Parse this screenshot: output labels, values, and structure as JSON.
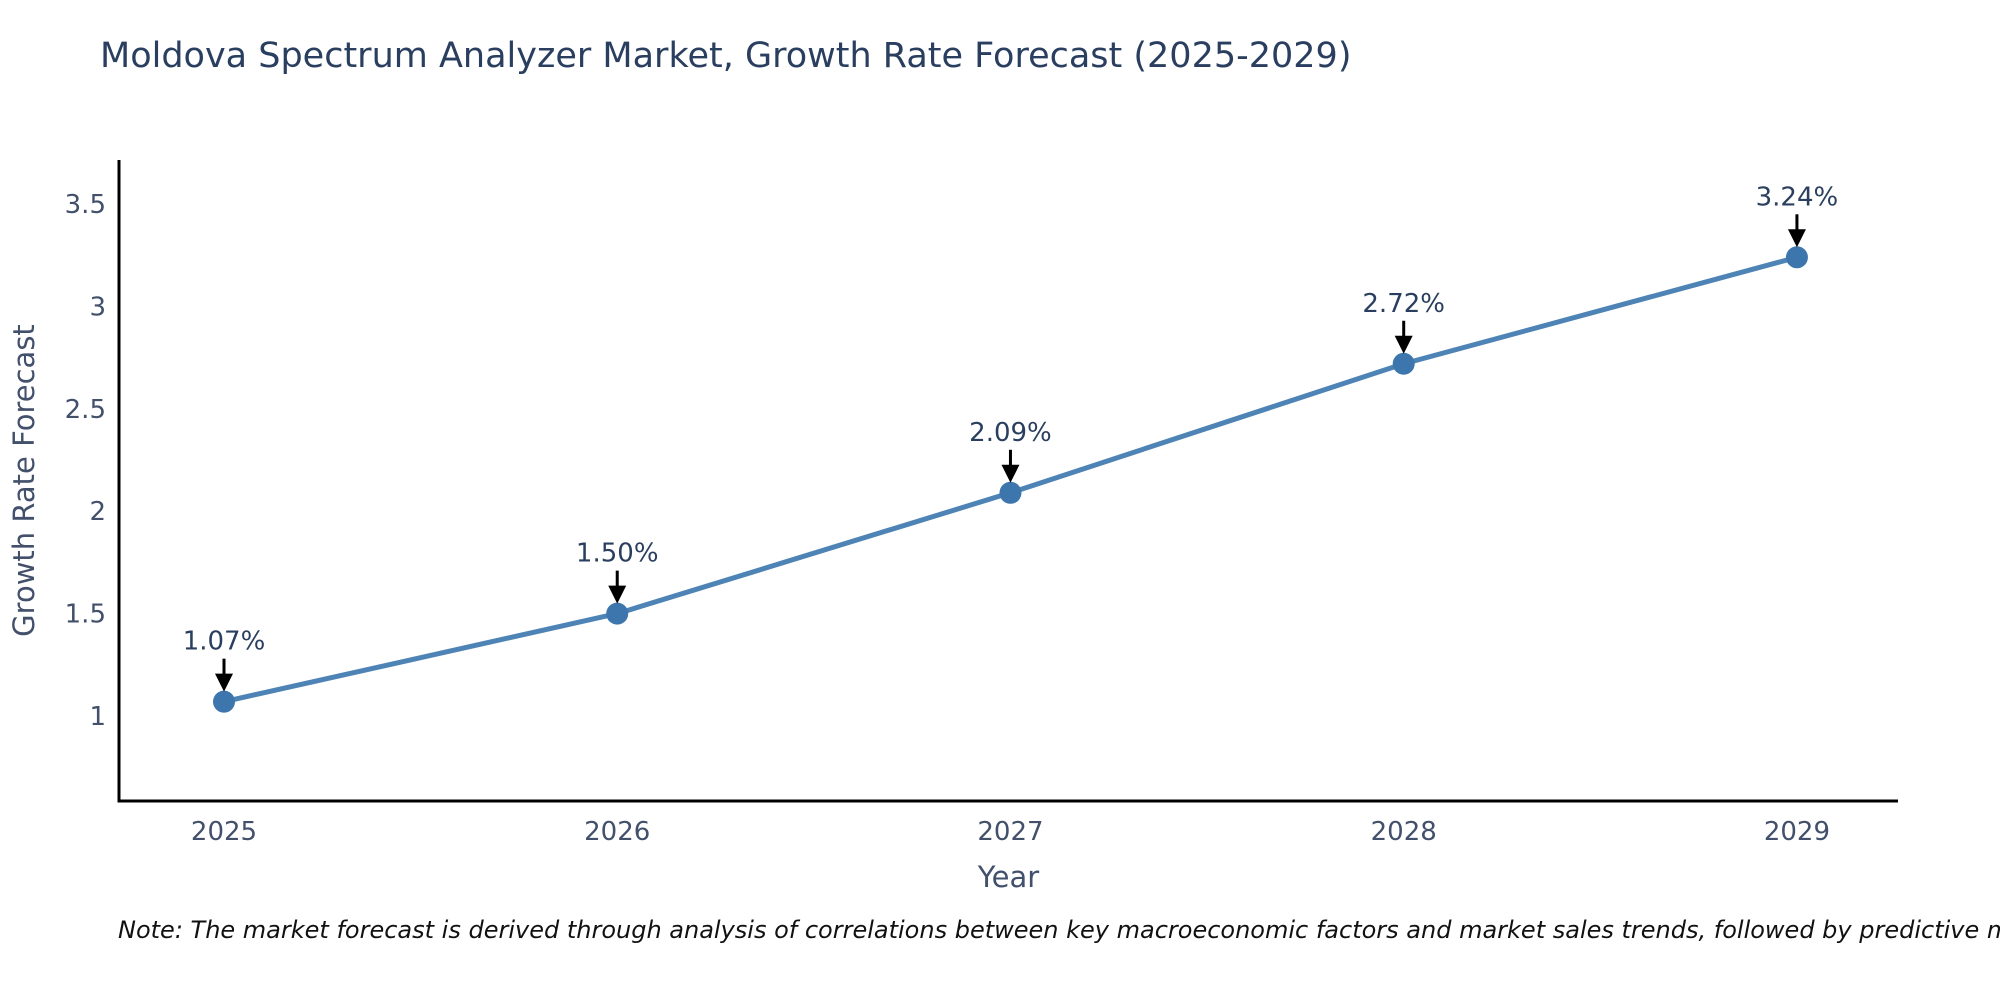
{
  "note": "Note: The market forecast is derived through analysis of correlations between key macroeconomic factors and market sales trends, followed by predictive modeling to project future sales",
  "chart_data": {
    "type": "line",
    "title": "Moldova Spectrum Analyzer Market, Growth Rate Forecast (2025-2029)",
    "xlabel": "Year",
    "ylabel": "Growth Rate Forecast",
    "x": [
      2025,
      2026,
      2027,
      2028,
      2029
    ],
    "values": [
      1.07,
      1.5,
      2.09,
      2.72,
      3.24
    ],
    "point_labels": [
      "1.07%",
      "1.50%",
      "2.09%",
      "2.72%",
      "3.24%"
    ],
    "x_tick_labels": [
      "2025",
      "2026",
      "2027",
      "2028",
      "2029"
    ],
    "y_ticks": [
      1,
      1.5,
      2,
      2.5,
      3,
      3.5
    ],
    "y_tick_labels": [
      "1",
      "1.5",
      "2",
      "2.5",
      "3",
      "3.5"
    ],
    "xlim": [
      2024.733,
      2029.257
    ],
    "ylim": [
      0.585,
      3.715
    ],
    "grid": false,
    "legend": "none",
    "marker": "circle",
    "annotation_style": "label-above-with-down-arrow",
    "colors": {
      "line": "#4e84b5",
      "marker": "#3c76ad",
      "arrow": "#000000",
      "axis_line": "#000000",
      "title_text": "#2a3f5f",
      "tick_text": "#42506b",
      "annotation_text": "#2a3f5f",
      "note_text": "#111111",
      "background": "#ffffff"
    }
  }
}
